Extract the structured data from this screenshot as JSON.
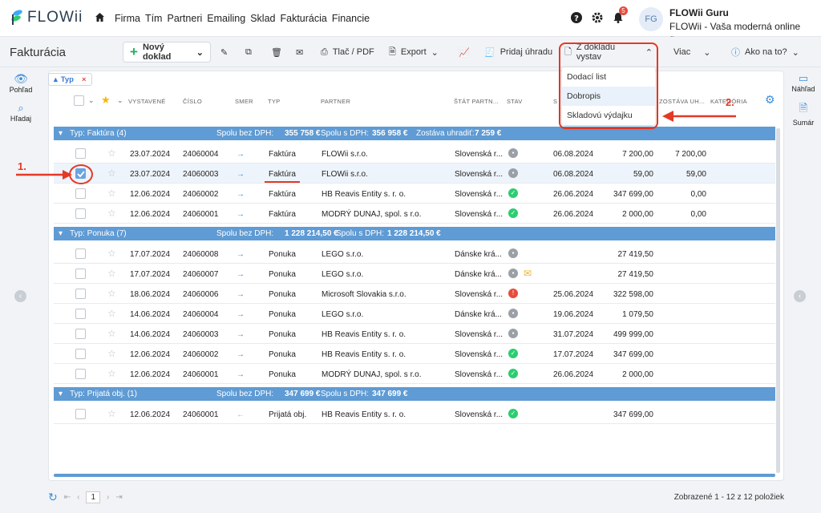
{
  "header": {
    "brand": "FLOWii",
    "nav": [
      "Firma",
      "Tím",
      "Partneri",
      "Emailing",
      "Sklad",
      "Fakturácia",
      "Financie"
    ],
    "notif_count": "5",
    "avatar": "FG",
    "user_name": "FLOWii Guru",
    "user_company": "FLOWii - Vaša moderná online firma"
  },
  "toolbar": {
    "title": "Fakturácia",
    "new_doc": "Nový doklad",
    "print": "Tlač / PDF",
    "export": "Export",
    "pay": "Pridaj úhradu",
    "from_doc": "Z dokladu vystav",
    "more": "Viac",
    "help": "Ako na to?"
  },
  "dropdown": [
    "Dodací list",
    "Dobropis",
    "Skladovú výdajku"
  ],
  "sidebar": {
    "view": "Pohľad",
    "search": "Hľadaj",
    "preview": "Náhľad",
    "summary": "Sumár"
  },
  "filter": "Typ",
  "columns": {
    "issued": "VYSTAVENÉ",
    "number": "ČÍSLO",
    "direction": "SMER",
    "type": "TYP",
    "partner": "PARTNER",
    "country": "ŠTÁT PARTN...",
    "status": "STAV",
    "due": "S",
    "remaining": "ZOSTÁVA UH...",
    "category": "KATEGÓRIA"
  },
  "annotations": {
    "one": "1.",
    "two": "2."
  },
  "groups": [
    {
      "title": "Typ: Faktúra (4)",
      "net_label": "Spolu bez DPH:",
      "net": "355 758 €",
      "gross_label": "Spolu s DPH:",
      "gross": "356 958 €",
      "rem_label": "Zostáva uhradiť:",
      "rem": "7 259 €",
      "rows": [
        {
          "date": "23.07.2024",
          "num": "24060004",
          "dir": "→",
          "type": "Faktúra",
          "partner": "FLOWii s.r.o.",
          "country": "Slovenská r...",
          "status": "grey",
          "due": "06.08.2024",
          "amount": "7 200,00",
          "remaining": "7 200,00"
        },
        {
          "date": "23.07.2024",
          "num": "24060003",
          "dir": "→",
          "type": "Faktúra",
          "partner": "FLOWii s.r.o.",
          "country": "Slovenská r...",
          "status": "grey",
          "due": "06.08.2024",
          "amount": "59,00",
          "remaining": "59,00",
          "selected": true
        },
        {
          "date": "12.06.2024",
          "num": "24060002",
          "dir": "→",
          "type": "Faktúra",
          "partner": "HB Reavis Entity s. r. o.",
          "country": "Slovenská r...",
          "status": "green",
          "due": "26.06.2024",
          "amount": "347 699,00",
          "remaining": "0,00"
        },
        {
          "date": "12.06.2024",
          "num": "24060001",
          "dir": "→",
          "type": "Faktúra",
          "partner": "MODRÝ DUNAJ, spol. s r.o.",
          "country": "Slovenská r...",
          "status": "green",
          "due": "26.06.2024",
          "amount": "2 000,00",
          "remaining": "0,00"
        }
      ]
    },
    {
      "title": "Typ: Ponuka (7)",
      "net_label": "Spolu bez DPH:",
      "net": "1 228 214,50 €",
      "gross_label": "Spolu s DPH:",
      "gross": "1 228 214,50 €",
      "rows": [
        {
          "date": "17.07.2024",
          "num": "24060008",
          "dir": "→",
          "type": "Ponuka",
          "partner": "LEGO s.r.o.",
          "country": "Dánske krá...",
          "status": "grey",
          "due": "",
          "amount": "27 419,50",
          "remaining": ""
        },
        {
          "date": "17.07.2024",
          "num": "24060007",
          "dir": "→",
          "type": "Ponuka",
          "partner": "LEGO s.r.o.",
          "country": "Dánske krá...",
          "status": "grey",
          "due": "",
          "amount": "27 419,50",
          "remaining": "",
          "email": true
        },
        {
          "date": "18.06.2024",
          "num": "24060006",
          "dir": "→",
          "type": "Ponuka",
          "partner": "Microsoft Slovakia s.r.o.",
          "country": "Slovenská r...",
          "status": "red",
          "due": "25.06.2024",
          "amount": "322 598,00",
          "remaining": ""
        },
        {
          "date": "14.06.2024",
          "num": "24060004",
          "dir": "→",
          "type": "Ponuka",
          "partner": "LEGO s.r.o.",
          "country": "Dánske krá...",
          "status": "grey",
          "due": "19.06.2024",
          "amount": "1 079,50",
          "remaining": ""
        },
        {
          "date": "14.06.2024",
          "num": "24060003",
          "dir": "→",
          "type": "Ponuka",
          "partner": "HB Reavis Entity s. r. o.",
          "country": "Slovenská r...",
          "status": "grey",
          "due": "31.07.2024",
          "amount": "499 999,00",
          "remaining": ""
        },
        {
          "date": "12.06.2024",
          "num": "24060002",
          "dir": "→",
          "type": "Ponuka",
          "partner": "HB Reavis Entity s. r. o.",
          "country": "Slovenská r...",
          "status": "green",
          "due": "17.07.2024",
          "amount": "347 699,00",
          "remaining": ""
        },
        {
          "date": "12.06.2024",
          "num": "24060001",
          "dir": "→",
          "type": "Ponuka",
          "partner": "MODRÝ DUNAJ, spol. s r.o.",
          "country": "Slovenská r...",
          "status": "green",
          "due": "26.06.2024",
          "amount": "2 000,00",
          "remaining": ""
        }
      ]
    },
    {
      "title": "Typ: Prijatá obj. (1)",
      "net_label": "Spolu bez DPH:",
      "net": "347 699 €",
      "gross_label": "Spolu s DPH:",
      "gross": "347 699 €",
      "rows": [
        {
          "date": "12.06.2024",
          "num": "24060001",
          "dir": "←",
          "type": "Prijatá obj.",
          "partner": "HB Reavis Entity s. r. o.",
          "country": "Slovenská r...",
          "status": "green",
          "due": "",
          "amount": "347 699,00",
          "remaining": ""
        }
      ]
    }
  ],
  "footer": {
    "page": "1",
    "count": "Zobrazené 1 - 12 z 12 položiek"
  }
}
